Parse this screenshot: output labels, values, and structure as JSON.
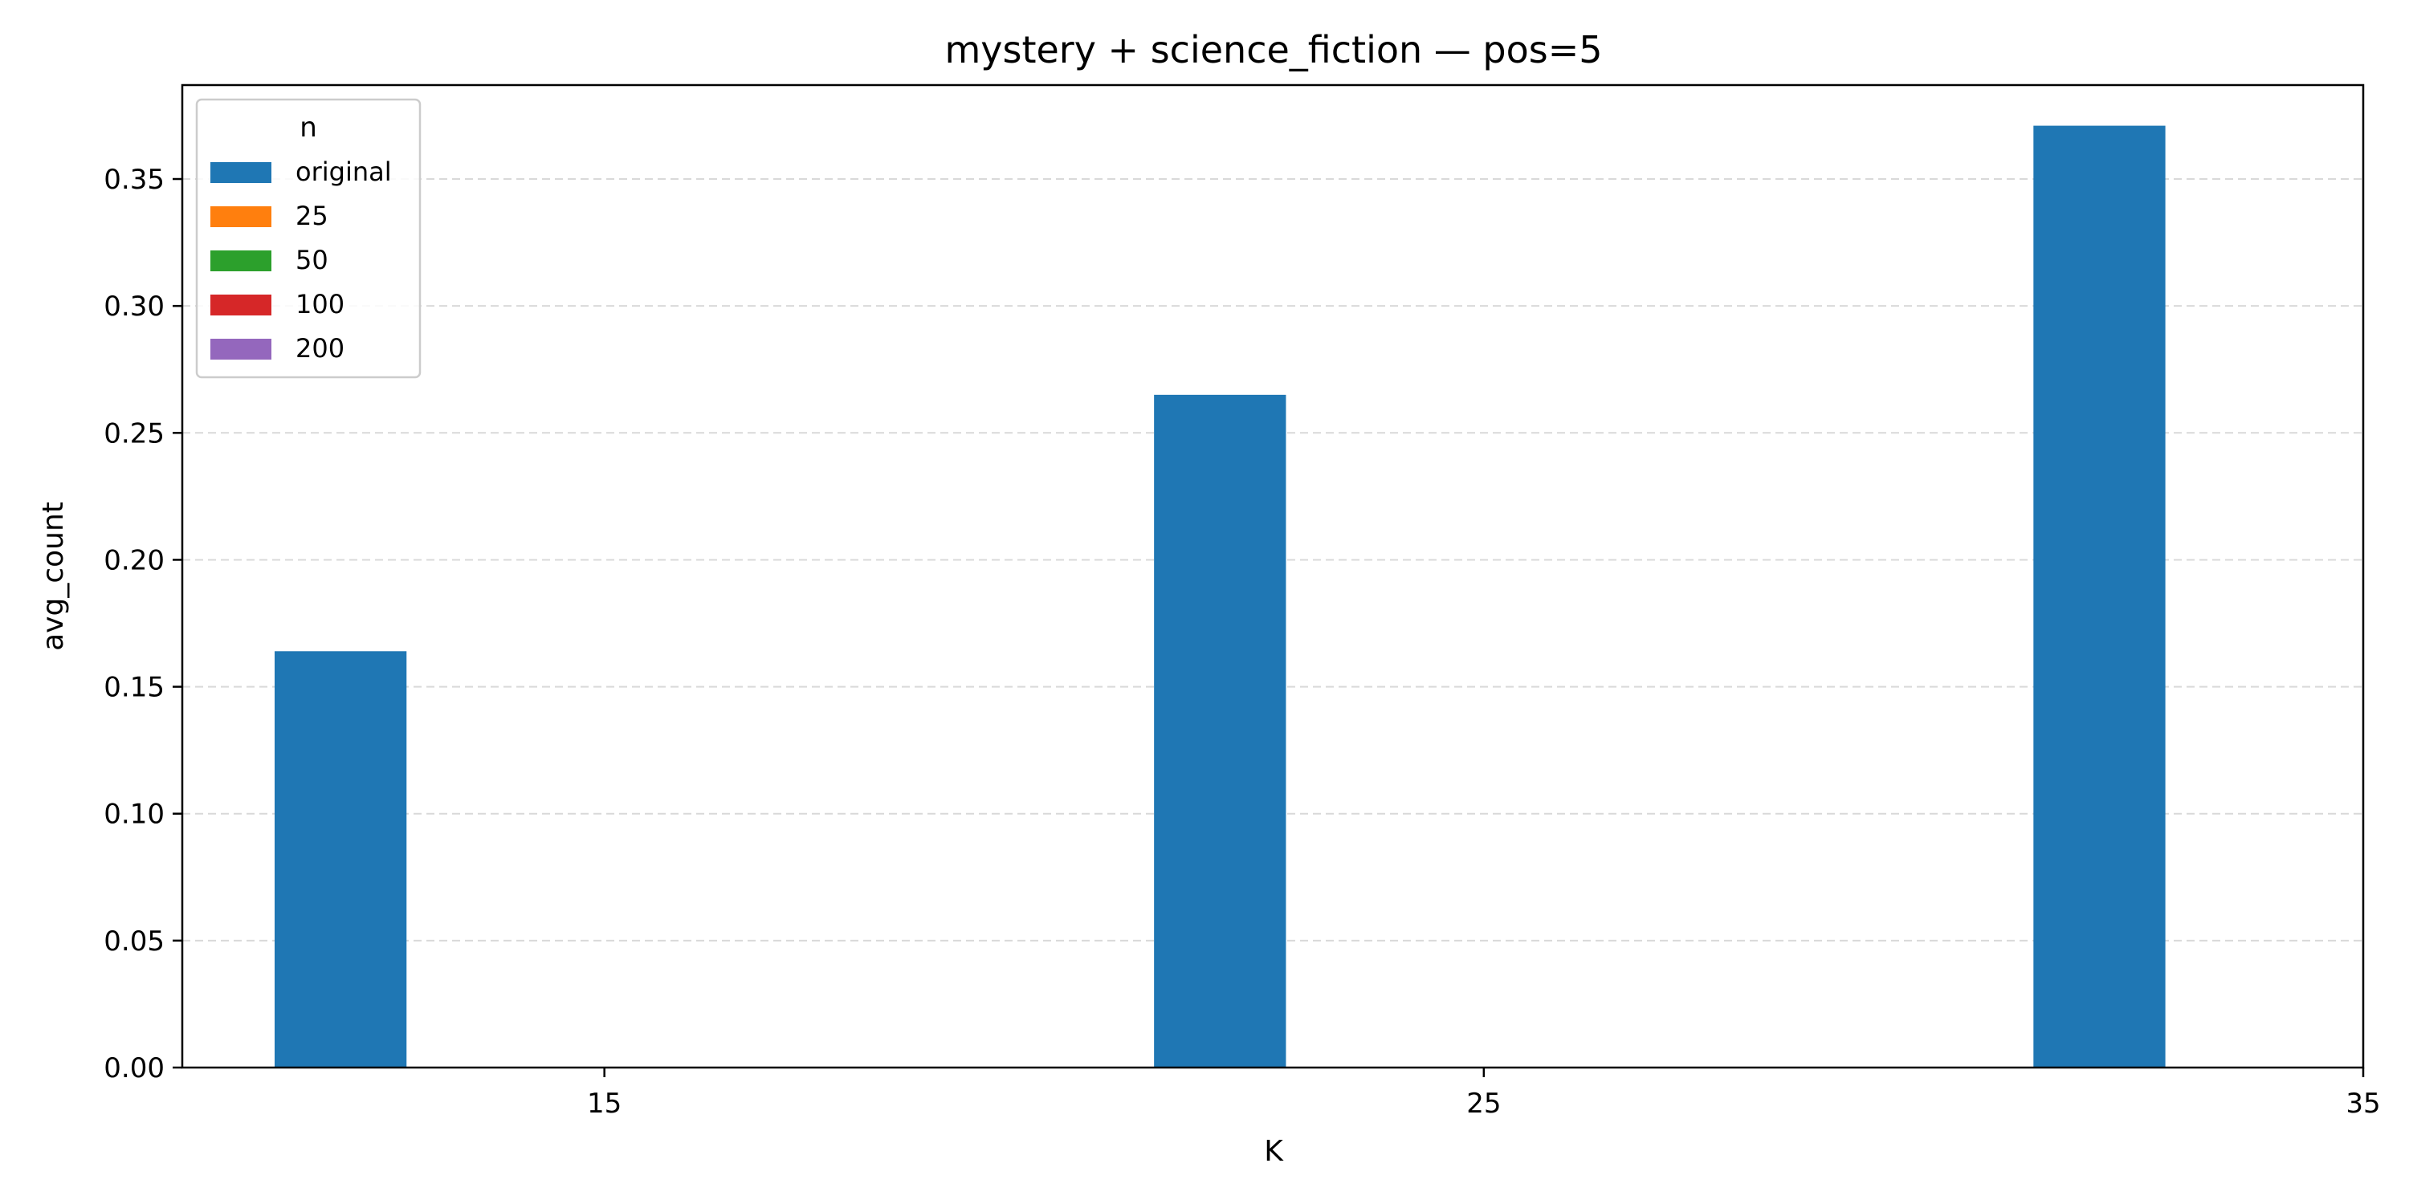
{
  "chart_data": {
    "type": "bar",
    "title": "mystery + science_fiction — pos=5",
    "xlabel": "K",
    "ylabel": "avg_count",
    "x_ticks": [
      15,
      25,
      35
    ],
    "xlim": [
      10.2,
      35
    ],
    "ylim": [
      0,
      0.387
    ],
    "y_ticks": [
      0.0,
      0.05,
      0.1,
      0.15,
      0.2,
      0.25,
      0.3,
      0.35
    ],
    "y_tick_labels": [
      "0.00",
      "0.05",
      "0.10",
      "0.15",
      "0.20",
      "0.25",
      "0.30",
      "0.35"
    ],
    "grid": "y-dashed",
    "legend": {
      "title": "n",
      "placement": "top-left"
    },
    "categories": [
      15,
      25,
      35
    ],
    "bar_width": 1.5,
    "series": [
      {
        "name": "original",
        "color": "#1f77b4",
        "offset": -3.0,
        "values": [
          0.164,
          0.265,
          0.371
        ]
      },
      {
        "name": "25",
        "color": "#ff7f0e",
        "offset": -1.5,
        "values": [
          0,
          0,
          0
        ]
      },
      {
        "name": "50",
        "color": "#2ca02c",
        "offset": 0.0,
        "values": [
          0,
          0,
          0
        ]
      },
      {
        "name": "100",
        "color": "#d62728",
        "offset": 1.5,
        "values": [
          0,
          0,
          0
        ]
      },
      {
        "name": "200",
        "color": "#9467bd",
        "offset": 3.0,
        "values": [
          0,
          0,
          0
        ]
      }
    ]
  }
}
